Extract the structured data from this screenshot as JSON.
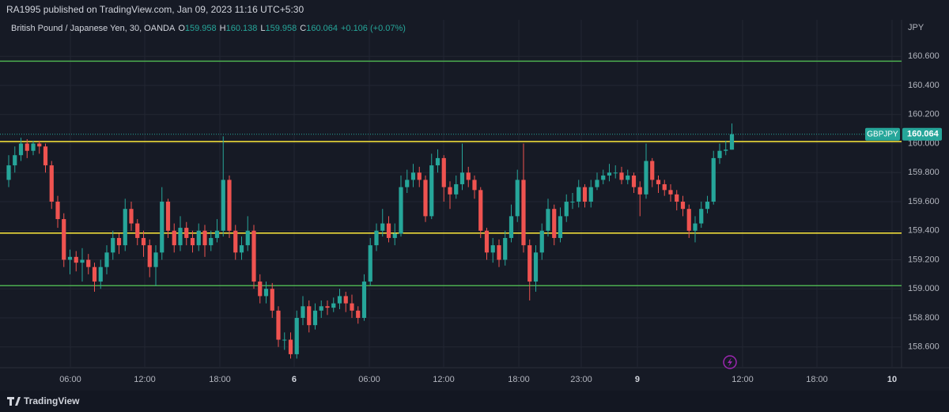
{
  "chart_data": {
    "type": "candlestick",
    "attribution": "RA1995 published on TradingView.com, Jan 09, 2023 11:16 UTC+5:30",
    "title": "British Pound / Japanese Yen, 30, OANDA",
    "ohlc_labels": [
      "O",
      "H",
      "L",
      "C"
    ],
    "change": "+0.106 (+0.07%)",
    "currency": "JPY",
    "symbol": "GBPJPY",
    "brand": "TradingView",
    "up_color": "#26a69a",
    "down_color": "#ef5350",
    "grid": true,
    "xlim": [
      -1.42,
      145.68
    ],
    "xticks": [
      {
        "value": 10.06,
        "label": "06:00"
      },
      {
        "value": 22.19,
        "label": "12:00"
      },
      {
        "value": 34.45,
        "label": "18:00"
      },
      {
        "value": 46.58,
        "label": "6"
      },
      {
        "value": 58.84,
        "label": "06:00"
      },
      {
        "value": 70.97,
        "label": "12:00"
      },
      {
        "value": 83.23,
        "label": "18:00"
      },
      {
        "value": 93.42,
        "label": "23:00"
      },
      {
        "value": 102.58,
        "label": "9"
      },
      {
        "value": 119.74,
        "label": "12:00"
      },
      {
        "value": 131.87,
        "label": "18:00"
      },
      {
        "value": 144.13,
        "label": "10"
      }
    ],
    "ylim": [
      158.457,
      160.852
    ],
    "yticks": [
      {
        "value": 158.6,
        "label": "158.600"
      },
      {
        "value": 158.8,
        "label": "158.800"
      },
      {
        "value": 159.0,
        "label": "159.000"
      },
      {
        "value": 159.2,
        "label": "159.200"
      },
      {
        "value": 159.4,
        "label": "159.400"
      },
      {
        "value": 159.6,
        "label": "159.600"
      },
      {
        "value": 159.8,
        "label": "159.800"
      },
      {
        "value": 160.0,
        "label": "160.000"
      },
      {
        "value": 160.2,
        "label": "160.200"
      },
      {
        "value": 160.4,
        "label": "160.400"
      },
      {
        "value": 160.6,
        "label": "160.600"
      }
    ],
    "levels": [
      {
        "value": 160.567,
        "color": "#4caf50"
      },
      {
        "value": 160.014,
        "color": "#ffeb3b"
      },
      {
        "value": 159.384,
        "color": "#ffeb3b"
      },
      {
        "value": 159.022,
        "color": "#4caf50"
      }
    ],
    "series": [
      {
        "name": "GBPJPY",
        "open": [
          159.75,
          159.85,
          159.92,
          160.0,
          159.95,
          160.0,
          159.98,
          159.85,
          159.6,
          159.48,
          159.2,
          159.22,
          159.18,
          159.2,
          159.15,
          159.05,
          159.15,
          159.25,
          159.35,
          159.3,
          159.55,
          159.45,
          159.35,
          159.3,
          159.15,
          159.25,
          159.6,
          159.4,
          159.3,
          159.42,
          159.35,
          159.3,
          159.4,
          159.3,
          159.35,
          159.4,
          159.75,
          159.4,
          159.25,
          159.3,
          159.4,
          159.05,
          158.95,
          159.0,
          158.85,
          158.65,
          158.65,
          158.55,
          158.8,
          158.88,
          158.75,
          158.85,
          158.88,
          158.87,
          158.9,
          158.95,
          158.9,
          158.85,
          158.8,
          159.05,
          159.3,
          159.4,
          159.45,
          159.35,
          159.38,
          159.7,
          159.75,
          159.8,
          159.75,
          159.5,
          159.85,
          159.9,
          159.7,
          159.65,
          159.72,
          159.8,
          159.75,
          159.68,
          159.4,
          159.25,
          159.3,
          159.2,
          159.35,
          159.5,
          159.75,
          159.3,
          159.05,
          159.25,
          159.4,
          159.55,
          159.35,
          159.5,
          159.6,
          159.6,
          159.7,
          159.6,
          159.7,
          159.75,
          159.78,
          159.8,
          159.8,
          159.75,
          159.78,
          159.7,
          159.65,
          159.88,
          159.75,
          159.72,
          159.68,
          159.65,
          159.6,
          159.55,
          159.4,
          159.45,
          159.55,
          159.6,
          159.9,
          159.95,
          159.958
        ],
        "high": [
          159.92,
          159.98,
          160.04,
          160.03,
          160.02,
          160.02,
          160.0,
          159.88,
          159.64,
          159.52,
          159.27,
          159.26,
          159.28,
          159.24,
          159.18,
          159.2,
          159.3,
          159.4,
          159.38,
          159.62,
          159.6,
          159.48,
          159.4,
          159.34,
          159.3,
          159.7,
          159.62,
          159.45,
          159.5,
          159.46,
          159.4,
          159.45,
          159.44,
          159.4,
          159.48,
          160.05,
          159.78,
          159.44,
          159.36,
          159.5,
          159.44,
          159.1,
          159.05,
          159.04,
          158.88,
          158.7,
          158.7,
          158.85,
          158.95,
          158.92,
          158.9,
          158.92,
          158.92,
          158.94,
          159.0,
          158.98,
          158.96,
          158.88,
          159.1,
          159.35,
          159.45,
          159.55,
          159.5,
          159.45,
          159.78,
          159.82,
          159.86,
          159.84,
          159.78,
          159.93,
          159.96,
          159.92,
          159.74,
          159.78,
          160.0,
          159.84,
          159.78,
          159.7,
          159.42,
          159.35,
          159.34,
          159.4,
          159.58,
          159.82,
          160.0,
          159.34,
          159.3,
          159.45,
          159.62,
          159.58,
          159.56,
          159.65,
          159.66,
          159.75,
          159.72,
          159.75,
          159.8,
          159.82,
          159.86,
          159.85,
          159.84,
          159.82,
          159.8,
          159.74,
          160.0,
          159.9,
          159.78,
          159.75,
          159.72,
          159.68,
          159.64,
          159.58,
          159.5,
          159.6,
          159.64,
          159.95,
          160.0,
          160.02,
          160.138
        ],
        "low": [
          159.7,
          159.8,
          159.88,
          159.9,
          159.92,
          159.93,
          159.8,
          159.55,
          159.42,
          159.15,
          159.1,
          159.12,
          159.05,
          159.1,
          158.98,
          159.0,
          159.1,
          159.2,
          159.24,
          159.26,
          159.4,
          159.3,
          159.22,
          159.08,
          159.02,
          159.2,
          159.35,
          159.25,
          159.26,
          159.3,
          159.25,
          159.26,
          159.22,
          159.26,
          159.32,
          159.36,
          159.35,
          159.2,
          159.2,
          159.26,
          159.0,
          158.9,
          158.9,
          158.8,
          158.6,
          158.58,
          158.52,
          158.52,
          158.75,
          158.7,
          158.72,
          158.8,
          158.82,
          158.84,
          158.86,
          158.84,
          158.8,
          158.76,
          158.78,
          159.02,
          159.26,
          159.36,
          159.32,
          159.3,
          159.36,
          159.66,
          159.7,
          159.7,
          159.46,
          159.48,
          159.8,
          159.6,
          159.55,
          159.62,
          159.68,
          159.7,
          159.62,
          159.35,
          159.2,
          159.18,
          159.15,
          159.16,
          159.32,
          159.46,
          159.25,
          158.92,
          158.98,
          159.2,
          159.36,
          159.3,
          159.32,
          159.46,
          159.55,
          159.56,
          159.56,
          159.56,
          159.68,
          159.72,
          159.74,
          159.76,
          159.72,
          159.72,
          159.66,
          159.5,
          159.62,
          159.7,
          159.66,
          159.64,
          159.6,
          159.54,
          159.5,
          159.35,
          159.32,
          159.42,
          159.52,
          159.58,
          159.86,
          159.92,
          159.958
        ],
        "close": [
          159.85,
          159.92,
          160.0,
          159.95,
          160.0,
          159.98,
          159.85,
          159.6,
          159.48,
          159.2,
          159.22,
          159.18,
          159.2,
          159.15,
          159.05,
          159.15,
          159.25,
          159.35,
          159.3,
          159.55,
          159.45,
          159.35,
          159.3,
          159.15,
          159.25,
          159.6,
          159.4,
          159.3,
          159.42,
          159.35,
          159.3,
          159.4,
          159.3,
          159.35,
          159.4,
          159.75,
          159.4,
          159.25,
          159.3,
          159.4,
          159.05,
          158.95,
          159.0,
          158.85,
          158.65,
          158.65,
          158.55,
          158.8,
          158.88,
          158.75,
          158.85,
          158.88,
          158.87,
          158.9,
          158.95,
          158.9,
          158.85,
          158.8,
          159.05,
          159.3,
          159.4,
          159.45,
          159.35,
          159.38,
          159.7,
          159.75,
          159.8,
          159.75,
          159.5,
          159.85,
          159.9,
          159.7,
          159.65,
          159.72,
          159.8,
          159.75,
          159.68,
          159.4,
          159.25,
          159.3,
          159.2,
          159.35,
          159.5,
          159.75,
          159.3,
          159.05,
          159.25,
          159.4,
          159.55,
          159.35,
          159.5,
          159.6,
          159.6,
          159.7,
          159.6,
          159.7,
          159.75,
          159.78,
          159.8,
          159.8,
          159.75,
          159.78,
          159.7,
          159.65,
          159.88,
          159.75,
          159.72,
          159.68,
          159.65,
          159.6,
          159.55,
          159.4,
          159.45,
          159.55,
          159.6,
          159.9,
          159.95,
          159.958,
          160.064
        ]
      }
    ]
  }
}
